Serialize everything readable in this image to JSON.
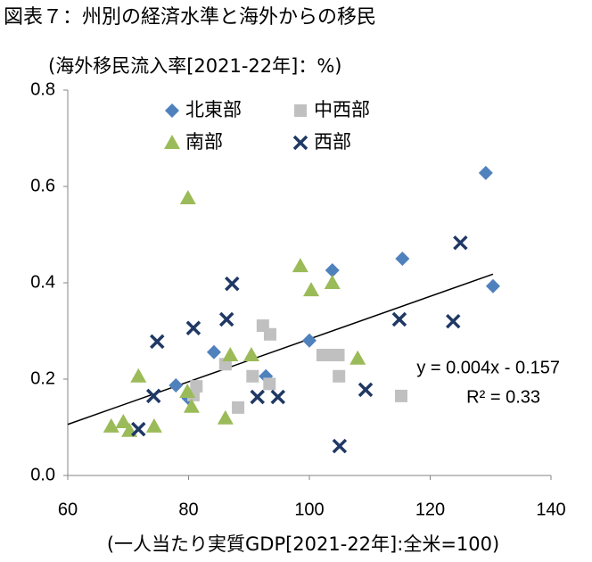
{
  "chart_data": {
    "type": "scatter",
    "title": "図表７：州別の経済水準と海外からの移民",
    "y_label": "(海外移民流入率[2021-22年]：%)",
    "x_label": "(一人当たり実質GDP[2021-22年]:全米=100)",
    "annotations": [
      "y = 0.004x - 0.157",
      "R² = 0.33"
    ],
    "xlim": [
      60,
      140
    ],
    "xticks": [
      60,
      80,
      100,
      120,
      140
    ],
    "ylim": [
      0,
      0.8
    ],
    "yticks": [
      {
        "value": 0,
        "label": "0.0"
      },
      0.2,
      0.4,
      0.6,
      0.8
    ],
    "trendline": {
      "x": [
        60,
        130.4
      ],
      "y": [
        0.106,
        0.418
      ],
      "color": "#000000"
    },
    "series": [
      {
        "name": "北東部",
        "color": "#4f81bd",
        "marker": "diamond",
        "x": [
          129.2,
          130.4,
          115.4,
          103.8,
          100,
          84.2,
          77.9,
          92.8,
          80
        ],
        "values": [
          0.628,
          0.393,
          0.45,
          0.426,
          0.28,
          0.256,
          0.187,
          0.206,
          0.16
        ]
      },
      {
        "name": "中西部",
        "color": "#c0c0c0",
        "marker": "square",
        "x": [
          92.3,
          93.5,
          86.1,
          90.6,
          81.3,
          80.8,
          88.2,
          93.4,
          102.2,
          104,
          104.8,
          104.9,
          115.2
        ],
        "values": [
          0.311,
          0.293,
          0.231,
          0.206,
          0.185,
          0.167,
          0.141,
          0.19,
          0.25,
          0.25,
          0.25,
          0.206,
          0.165
        ]
      },
      {
        "name": "南部",
        "color": "#9bbb59",
        "marker": "triangle",
        "x": [
          79.9,
          98.5,
          100.3,
          103.8,
          86.9,
          90.4,
          108,
          71.7,
          79.8,
          80.5,
          86.1,
          69.2,
          67.2,
          70.2,
          74.3
        ],
        "values": [
          0.576,
          0.435,
          0.385,
          0.4,
          0.25,
          0.25,
          0.243,
          0.206,
          0.174,
          0.143,
          0.119,
          0.111,
          0.102,
          0.093,
          0.102
        ]
      },
      {
        "name": "西部",
        "color": "#1f3864",
        "marker": "x",
        "x": [
          125,
          114.9,
          123.8,
          87.2,
          86.3,
          80.8,
          74.8,
          74.2,
          91.4,
          94.8,
          109.3,
          105,
          71.7
        ],
        "values": [
          0.483,
          0.324,
          0.32,
          0.398,
          0.324,
          0.306,
          0.278,
          0.165,
          0.163,
          0.163,
          0.178,
          0.061,
          0.096
        ]
      }
    ]
  }
}
